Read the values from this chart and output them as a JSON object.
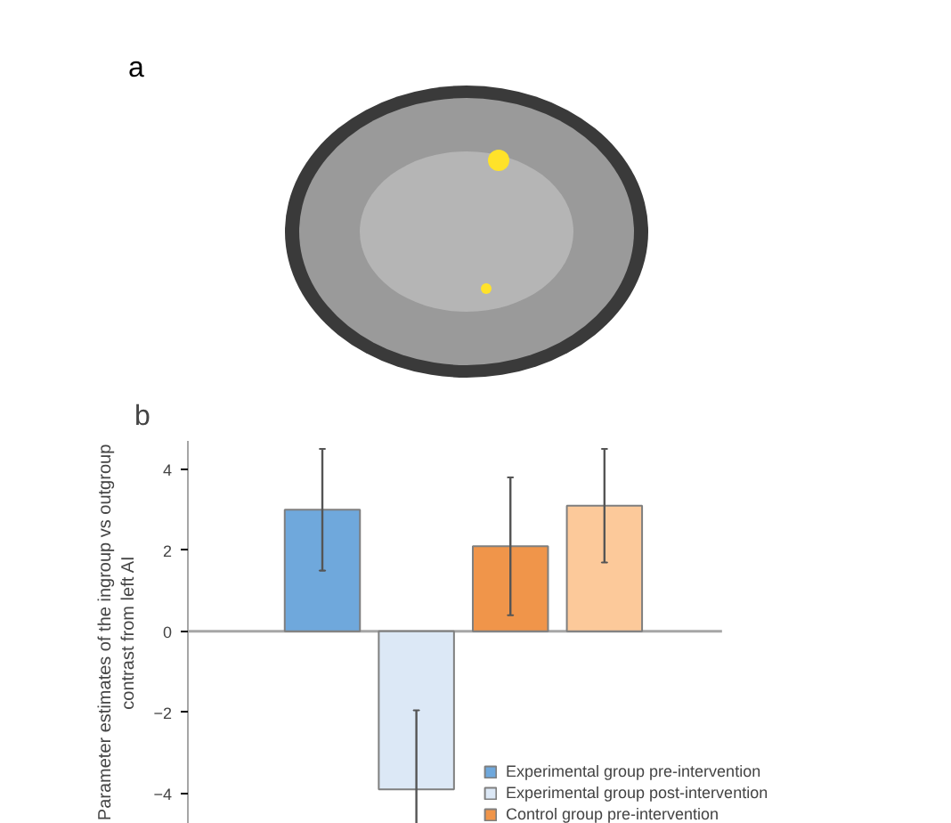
{
  "chart_data": {
    "type": "bar",
    "ylabel": "Parameter estimates of the ingroup vs outgroup\ncontrast from left AI",
    "annotations": [
      "a",
      "b"
    ],
    "categories": [
      null,
      null,
      null,
      null
    ],
    "series": [
      {
        "name": "Experimental group pre-intervention",
        "color": "#6fa8dc",
        "values": [
          3.0,
          null,
          null,
          null
        ],
        "errors": [
          1.5,
          null,
          null,
          null
        ]
      },
      {
        "name": "Experimental group post-intervention",
        "color": "#dce8f6",
        "values": [
          null,
          -3.9,
          null,
          null
        ],
        "errors": [
          null,
          [
            -4.75,
            -1.95
          ],
          null,
          null
        ]
      },
      {
        "name": "Control group pre-intervention",
        "color": "#f0954a",
        "values": [
          null,
          null,
          2.1,
          null
        ],
        "errors": [
          null,
          null,
          1.7,
          null
        ]
      },
      {
        "color": "#fcc99a",
        "values": [
          null,
          null,
          null,
          3.1
        ],
        "errors": [
          null,
          null,
          null,
          1.4
        ]
      }
    ],
    "ylim": [
      -4.75,
      4.7
    ],
    "yticks": [
      -4,
      -2,
      0,
      2,
      4
    ],
    "ref_lines": [
      {
        "axis": "y",
        "value": 0,
        "color": "#a6a6a6"
      }
    ],
    "grid": false,
    "legend": "bottom right"
  }
}
